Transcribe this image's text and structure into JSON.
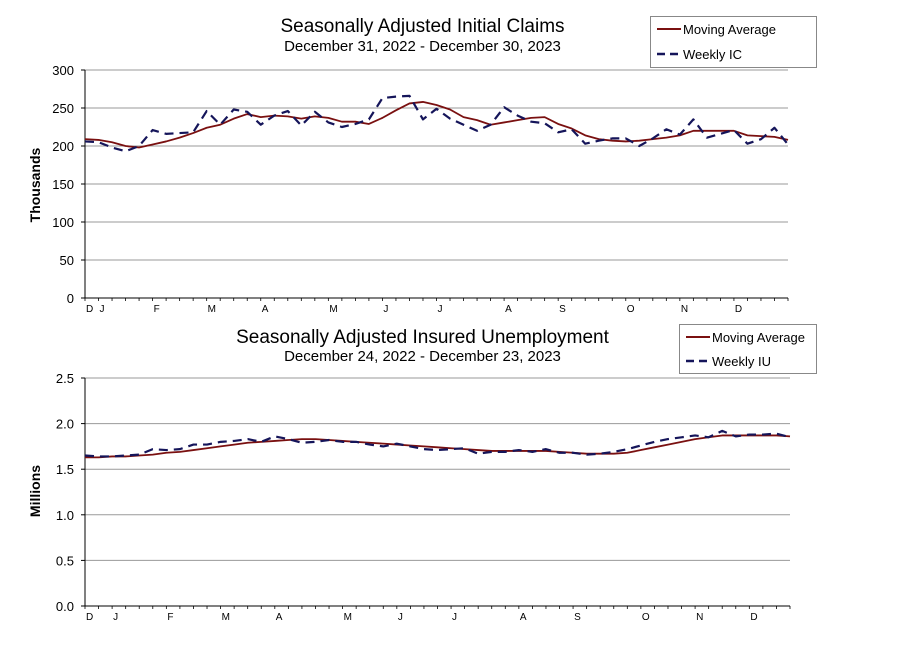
{
  "chart_data": [
    {
      "type": "line",
      "title": "Seasonally Adjusted Initial Claims",
      "subtitle": "December 31, 2022 - December 30, 2023",
      "xlabel": "",
      "ylabel": "Thousands",
      "ylim": [
        0,
        300
      ],
      "yticks": [
        "0",
        "50",
        "100",
        "150",
        "200",
        "250",
        "300"
      ],
      "ytick_values": [
        0,
        50,
        100,
        150,
        200,
        250,
        300
      ],
      "grid": true,
      "legend_position": "top-right",
      "month_labels": [
        {
          "label": "D",
          "week": 0
        },
        {
          "label": "J",
          "week": 1
        },
        {
          "label": "F",
          "week": 5
        },
        {
          "label": "M",
          "week": 9
        },
        {
          "label": "A",
          "week": 13
        },
        {
          "label": "M",
          "week": 18
        },
        {
          "label": "J",
          "week": 22
        },
        {
          "label": "J",
          "week": 26
        },
        {
          "label": "A",
          "week": 31
        },
        {
          "label": "S",
          "week": 35
        },
        {
          "label": "O",
          "week": 40
        },
        {
          "label": "N",
          "week": 44
        },
        {
          "label": "D",
          "week": 48
        }
      ],
      "series": [
        {
          "name": "Moving Average",
          "color": "#7a1010",
          "style": "solid",
          "values": [
            209,
            208,
            205,
            200,
            198,
            202,
            206,
            211,
            217,
            224,
            228,
            236,
            242,
            238,
            240,
            239,
            236,
            239,
            237,
            232,
            232,
            229,
            237,
            247,
            256,
            258,
            254,
            248,
            238,
            234,
            228,
            231,
            234,
            237,
            238,
            229,
            223,
            214,
            209,
            207,
            206,
            207,
            209,
            211,
            214,
            220,
            220,
            220,
            220,
            214,
            213,
            212,
            208
          ]
        },
        {
          "name": "Weekly IC",
          "color": "#15155a",
          "style": "dashed",
          "values": [
            206,
            205,
            198,
            193,
            200,
            221,
            216,
            217,
            218,
            246,
            228,
            248,
            245,
            228,
            240,
            246,
            227,
            245,
            231,
            225,
            229,
            235,
            263,
            265,
            266,
            235,
            249,
            236,
            228,
            220,
            228,
            251,
            240,
            232,
            230,
            218,
            222,
            203,
            207,
            210,
            210,
            200,
            210,
            222,
            215,
            235,
            211,
            216,
            221,
            203,
            209,
            224,
            202
          ]
        }
      ]
    },
    {
      "type": "line",
      "title": "Seasonally Adjusted Insured Unemployment",
      "subtitle": "December 24, 2022 - December 23, 2023",
      "xlabel": "",
      "ylabel": "Millions",
      "ylim": [
        0,
        2.5
      ],
      "yticks": [
        "0.0",
        "0.5",
        "1.0",
        "1.5",
        "2.0",
        "2.5"
      ],
      "ytick_values": [
        0,
        0.5,
        1.0,
        1.5,
        2.0,
        2.5
      ],
      "grid": true,
      "legend_position": "top-right",
      "month_labels": [
        {
          "label": "D",
          "week": 0
        },
        {
          "label": "J",
          "week": 2
        },
        {
          "label": "F",
          "week": 6
        },
        {
          "label": "M",
          "week": 10
        },
        {
          "label": "A",
          "week": 14
        },
        {
          "label": "M",
          "week": 19
        },
        {
          "label": "J",
          "week": 23
        },
        {
          "label": "J",
          "week": 27
        },
        {
          "label": "A",
          "week": 32
        },
        {
          "label": "S",
          "week": 36
        },
        {
          "label": "O",
          "week": 41
        },
        {
          "label": "N",
          "week": 45
        },
        {
          "label": "D",
          "week": 49
        }
      ],
      "series": [
        {
          "name": "Moving Average",
          "color": "#7a1010",
          "style": "solid",
          "values": [
            1.63,
            1.63,
            1.64,
            1.64,
            1.65,
            1.66,
            1.68,
            1.69,
            1.71,
            1.73,
            1.75,
            1.77,
            1.79,
            1.8,
            1.81,
            1.82,
            1.83,
            1.83,
            1.82,
            1.81,
            1.8,
            1.79,
            1.78,
            1.77,
            1.76,
            1.75,
            1.74,
            1.73,
            1.72,
            1.71,
            1.7,
            1.7,
            1.7,
            1.7,
            1.7,
            1.69,
            1.68,
            1.67,
            1.67,
            1.67,
            1.68,
            1.71,
            1.74,
            1.77,
            1.8,
            1.83,
            1.85,
            1.87,
            1.87,
            1.87,
            1.87,
            1.87,
            1.86
          ]
        },
        {
          "name": "Weekly IU",
          "color": "#15155a",
          "style": "dashed",
          "values": [
            1.65,
            1.64,
            1.64,
            1.65,
            1.66,
            1.72,
            1.71,
            1.72,
            1.77,
            1.77,
            1.8,
            1.81,
            1.83,
            1.8,
            1.86,
            1.83,
            1.79,
            1.8,
            1.82,
            1.8,
            1.8,
            1.77,
            1.75,
            1.78,
            1.75,
            1.72,
            1.71,
            1.72,
            1.73,
            1.67,
            1.69,
            1.69,
            1.71,
            1.69,
            1.72,
            1.68,
            1.68,
            1.66,
            1.67,
            1.69,
            1.72,
            1.76,
            1.8,
            1.83,
            1.85,
            1.87,
            1.85,
            1.92,
            1.86,
            1.88,
            1.88,
            1.89,
            1.85
          ]
        }
      ]
    }
  ]
}
